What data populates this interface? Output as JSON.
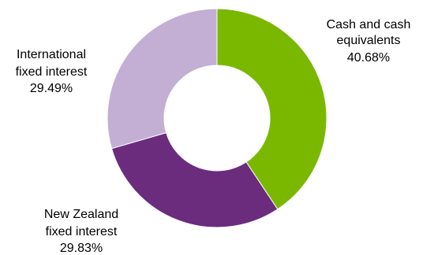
{
  "chart_data": {
    "type": "pie",
    "donut": true,
    "start_angle_deg": 0,
    "direction": "clockwise",
    "slices": [
      {
        "label_lines": [
          "Cash and cash",
          "equivalents"
        ],
        "percent_label": "40.68%",
        "value": 40.68,
        "color": "#7ab800"
      },
      {
        "label_lines": [
          "New Zealand",
          "fixed interest"
        ],
        "percent_label": "29.83%",
        "value": 29.83,
        "color": "#6b2c7e"
      },
      {
        "label_lines": [
          "International",
          "fixed interest"
        ],
        "percent_label": "29.49%",
        "value": 29.49,
        "color": "#c3aed4"
      }
    ],
    "legend": "none"
  }
}
